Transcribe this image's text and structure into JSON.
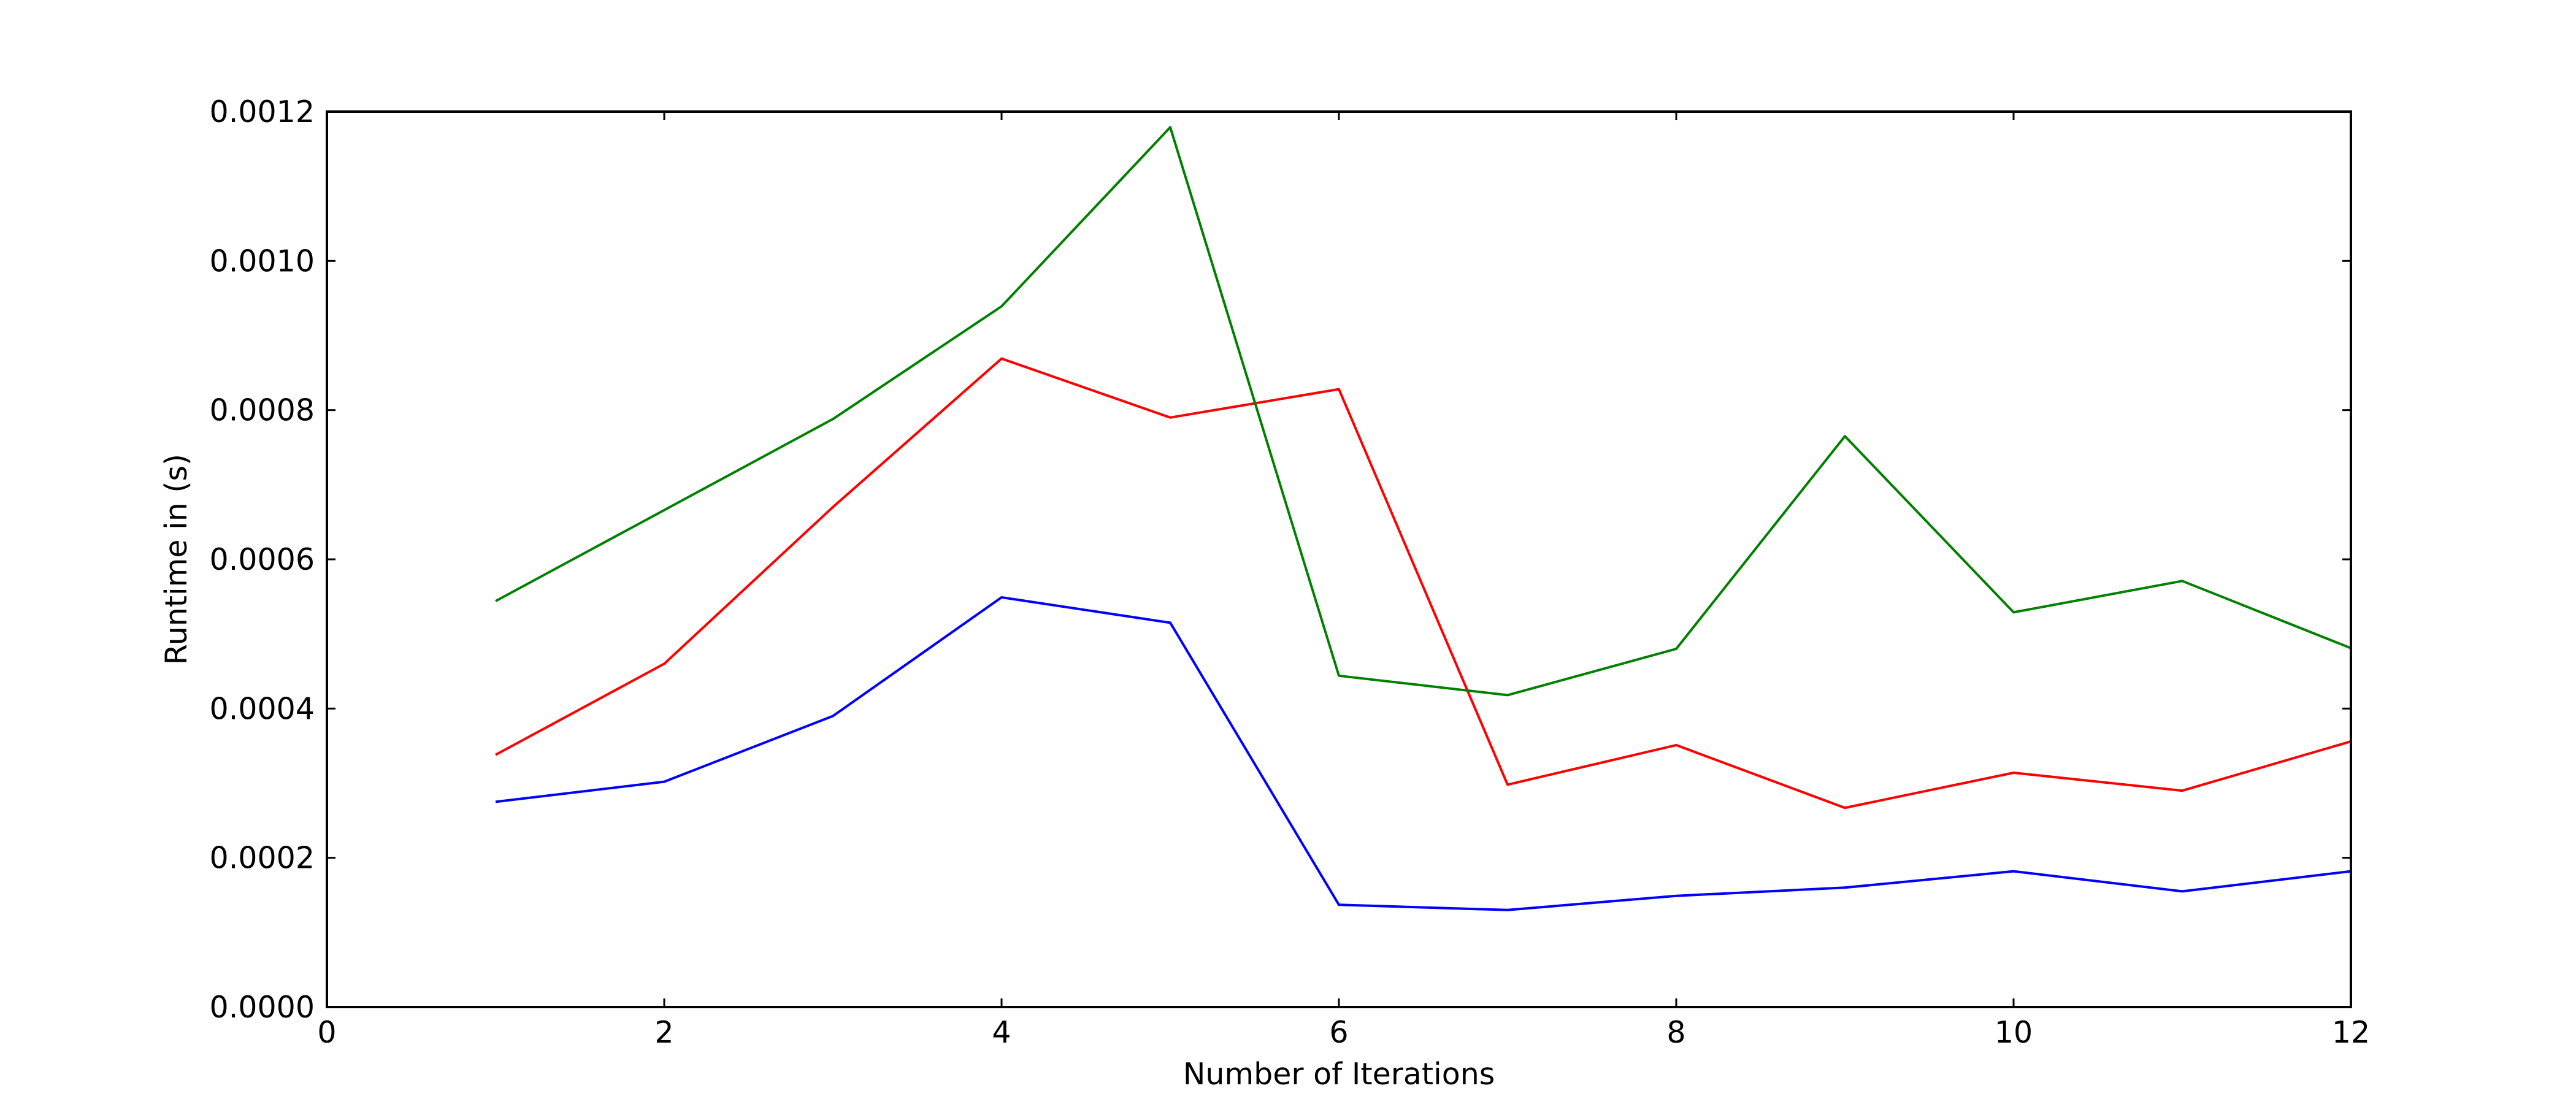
{
  "chart_data": {
    "type": "line",
    "title": "",
    "xlabel": "Number of Iterations",
    "ylabel": "Runtime in (s)",
    "xlim": [
      0,
      12
    ],
    "ylim": [
      0,
      0.0012
    ],
    "grid": false,
    "xticks": [
      0,
      2,
      4,
      6,
      8,
      10,
      12
    ],
    "xtick_labels": [
      "0",
      "2",
      "4",
      "6",
      "8",
      "10",
      "12"
    ],
    "yticks": [
      0,
      0.0002,
      0.0004,
      0.0006,
      0.0008,
      0.001,
      0.0012
    ],
    "ytick_labels": [
      "0.0000",
      "0.0002",
      "0.0004",
      "0.0006",
      "0.0008",
      "0.0010",
      "0.0012"
    ],
    "x": [
      1,
      2,
      3,
      4,
      5,
      6,
      7,
      8,
      9,
      10,
      11,
      12
    ],
    "series": [
      {
        "color": "#0000ff",
        "values": [
          0.000275,
          0.000302,
          0.00039,
          0.000549,
          0.000515,
          0.000137,
          0.00013,
          0.000149,
          0.00016,
          0.000182,
          0.000155,
          0.000182
        ]
      },
      {
        "color": "#ff0000",
        "values": [
          0.000338,
          0.00046,
          0.00067,
          0.000869,
          0.00079,
          0.000828,
          0.000298,
          0.000351,
          0.000267,
          0.000314,
          0.00029,
          0.000356
        ]
      },
      {
        "color": "#008000",
        "values": [
          0.000544,
          0.000666,
          0.000788,
          0.000939,
          0.001179,
          0.000444,
          0.000418,
          0.00048,
          0.000765,
          0.000529,
          0.000571,
          0.000481
        ]
      }
    ]
  }
}
